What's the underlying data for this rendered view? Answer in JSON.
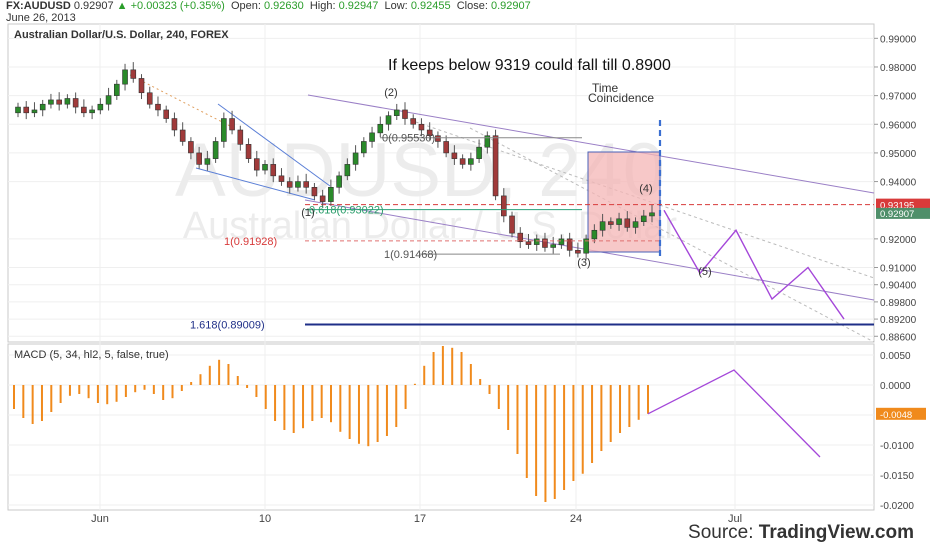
{
  "header": {
    "symbol": "FX:AUDUSD",
    "last": "0.92907",
    "change": "+0.00323 (+0.35%)",
    "open_label": "Open:",
    "open": "0.92630",
    "high_label": "High:",
    "high": "0.92947",
    "low_label": "Low:",
    "low": "0.92455",
    "close_label": "Close:",
    "close": "0.92907",
    "date": "June 26, 2013"
  },
  "chart_data": [
    {
      "type": "candlestick",
      "title": "Australian Dollar/U.S. Dollar, 240, FOREX",
      "watermark_symbol": "AUDUSD, 240",
      "watermark_name": "Australian Dollar / U.S. Dollar",
      "y_ticks": [
        "0.99000",
        "0.98000",
        "0.97000",
        "0.96000",
        "0.95000",
        "0.94000",
        "0.92000",
        "0.91000",
        "0.90400",
        "0.89800",
        "0.89200",
        "0.88600"
      ],
      "ylim": [
        0.884,
        0.995
      ],
      "x_ticks": [
        "Jun",
        "10",
        "17",
        "24",
        "Jul"
      ],
      "current_price_label": "0.92907",
      "level_label_red": "0.93195",
      "headline": "If keeps below 9319 could fall till 0.8900",
      "time_note_line1": "Time",
      "time_note_line2": "Coincidence",
      "wave_labels": [
        "(1)",
        "(2)",
        "(3)",
        "(4)",
        "(5)"
      ],
      "fib_levels": [
        {
          "label": "0(0.95530)",
          "value": 0.9553
        },
        {
          "label": "0.618(0.93022)",
          "value": 0.93022
        },
        {
          "label": "1(0.91928)",
          "value": 0.91928
        },
        {
          "label": "1(0.91468)",
          "value": 0.91468
        },
        {
          "label": "1.618(0.89009)",
          "value": 0.89009
        }
      ],
      "close_path": [
        0.966,
        0.964,
        0.965,
        0.967,
        0.9685,
        0.967,
        0.969,
        0.966,
        0.964,
        0.965,
        0.967,
        0.97,
        0.974,
        0.979,
        0.976,
        0.971,
        0.967,
        0.965,
        0.962,
        0.958,
        0.954,
        0.95,
        0.946,
        0.948,
        0.954,
        0.962,
        0.958,
        0.953,
        0.948,
        0.944,
        0.946,
        0.942,
        0.94,
        0.938,
        0.94,
        0.938,
        0.935,
        0.933,
        0.938,
        0.942,
        0.946,
        0.95,
        0.954,
        0.957,
        0.96,
        0.963,
        0.965,
        0.962,
        0.96,
        0.958,
        0.956,
        0.954,
        0.95,
        0.948,
        0.946,
        0.948,
        0.952,
        0.956,
        0.935,
        0.928,
        0.922,
        0.919,
        0.918,
        0.92,
        0.917,
        0.918,
        0.92,
        0.916,
        0.915,
        0.92,
        0.923,
        0.926,
        0.925,
        0.927,
        0.924,
        0.926,
        0.928,
        0.9291
      ],
      "projection": [
        0.93,
        0.908,
        0.923,
        0.899,
        0.91,
        0.892
      ]
    },
    {
      "type": "bar",
      "title": "MACD (5, 34, hl2, 5, false, true)",
      "y_ticks": [
        "0.0050",
        "0.0000",
        "-0.0050",
        "-0.0100",
        "-0.0150",
        "-0.0200"
      ],
      "ylim": [
        -0.0205,
        0.0065
      ],
      "current_value_label": "-0.0048",
      "values": [
        -0.004,
        -0.0055,
        -0.0065,
        -0.006,
        -0.0045,
        -0.003,
        -0.0018,
        -0.0015,
        -0.0022,
        -0.003,
        -0.0032,
        -0.0028,
        -0.002,
        -0.0012,
        -0.0008,
        -0.0015,
        -0.0025,
        -0.0022,
        -0.001,
        0.0005,
        0.0018,
        0.0032,
        0.0042,
        0.0035,
        0.0015,
        -0.0005,
        -0.002,
        -0.004,
        -0.006,
        -0.0075,
        -0.008,
        -0.0072,
        -0.006,
        -0.0055,
        -0.0062,
        -0.0078,
        -0.009,
        -0.0098,
        -0.0102,
        -0.0095,
        -0.0085,
        -0.007,
        -0.004,
        0.0002,
        0.0032,
        0.0055,
        0.0065,
        0.0062,
        0.0055,
        0.0035,
        0.001,
        -0.0015,
        -0.004,
        -0.0075,
        -0.0115,
        -0.0155,
        -0.0185,
        -0.0195,
        -0.019,
        -0.0175,
        -0.016,
        -0.0148,
        -0.013,
        -0.011,
        -0.0095,
        -0.008,
        -0.007,
        -0.0058,
        -0.0048
      ],
      "projection": [
        -0.0048,
        0.0025,
        -0.012
      ]
    }
  ],
  "footer": {
    "source_label": "Source:",
    "brand": "TradingView.com"
  }
}
